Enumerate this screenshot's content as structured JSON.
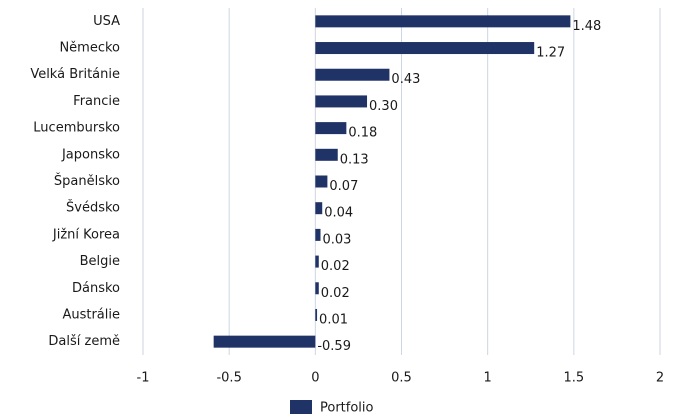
{
  "chart_data": {
    "type": "barh",
    "categories": [
      "USA",
      "Německo",
      "Velká Británie",
      "Francie",
      "Lucembursko",
      "Japonsko",
      "Španělsko",
      "Švédsko",
      "Jižní Korea",
      "Belgie",
      "Dánsko",
      "Austrálie",
      "Další země"
    ],
    "series": [
      {
        "name": "Portfolio",
        "color": "#1f3366",
        "values": [
          1.48,
          1.27,
          0.43,
          0.3,
          0.18,
          0.13,
          0.07,
          0.04,
          0.03,
          0.02,
          0.02,
          0.01,
          -0.59
        ],
        "value_labels": [
          "1.48",
          "1.27",
          "0.43",
          "0.30",
          "0.18",
          "0.13",
          "0.07",
          "0.04",
          "0.03",
          "0.02",
          "0.02",
          "0.01",
          "-0.59"
        ]
      }
    ],
    "xlim": [
      -1,
      2
    ],
    "xticks": [
      -1,
      -0.5,
      0,
      0.5,
      1,
      1.5,
      2
    ],
    "grid": true,
    "legend": "bottom"
  }
}
